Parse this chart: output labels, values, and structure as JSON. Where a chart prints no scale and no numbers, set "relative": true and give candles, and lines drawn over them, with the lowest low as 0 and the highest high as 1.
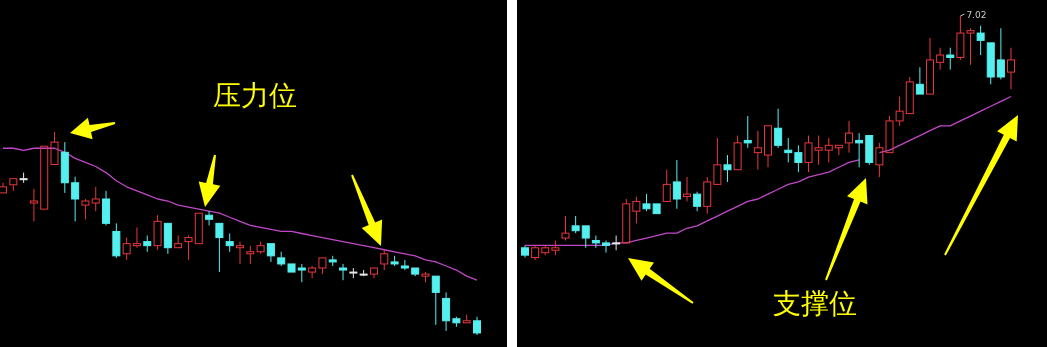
{
  "chart_data": [
    {
      "type": "candlestick",
      "relative": true,
      "categories": [
        null,
        null,
        null,
        null,
        null,
        null,
        null,
        null,
        null,
        null,
        null,
        null,
        null,
        null,
        null,
        null,
        null,
        null,
        null,
        null,
        null,
        null,
        null,
        null,
        null,
        null,
        null,
        null,
        null,
        null,
        null,
        null,
        null,
        null,
        null,
        null,
        null,
        null,
        null,
        null,
        null,
        null,
        null,
        null,
        null,
        null,
        null
      ],
      "ohlc": [
        [
          0.7,
          0.75,
          0.7,
          0.73
        ],
        [
          0.74,
          0.77,
          0.71,
          0.77
        ],
        [
          0.77,
          0.8,
          0.75,
          0.77
        ],
        [
          0.65,
          0.72,
          0.56,
          0.66
        ],
        [
          0.62,
          0.93,
          0.62,
          0.93
        ],
        [
          0.84,
          1.0,
          0.84,
          0.95
        ],
        [
          0.9,
          0.95,
          0.7,
          0.75
        ],
        [
          0.75,
          0.78,
          0.56,
          0.67
        ],
        [
          0.64,
          0.67,
          0.57,
          0.66
        ],
        [
          0.65,
          0.73,
          0.61,
          0.67
        ],
        [
          0.67,
          0.71,
          0.54,
          0.55
        ],
        [
          0.51,
          0.55,
          0.38,
          0.39
        ],
        [
          0.4,
          0.48,
          0.37,
          0.45
        ],
        [
          0.44,
          0.53,
          0.43,
          0.45
        ],
        [
          0.46,
          0.49,
          0.41,
          0.44
        ],
        [
          0.44,
          0.59,
          0.42,
          0.56
        ],
        [
          0.55,
          0.55,
          0.4,
          0.43
        ],
        [
          0.43,
          0.49,
          0.43,
          0.45
        ],
        [
          0.46,
          0.49,
          0.37,
          0.48
        ],
        [
          0.45,
          0.6,
          0.45,
          0.6
        ],
        [
          0.59,
          0.61,
          0.54,
          0.57
        ],
        [
          0.55,
          0.55,
          0.31,
          0.48
        ],
        [
          0.46,
          0.5,
          0.41,
          0.44
        ],
        [
          0.43,
          0.46,
          0.35,
          0.44
        ],
        [
          0.4,
          0.44,
          0.35,
          0.41
        ],
        [
          0.41,
          0.46,
          0.4,
          0.44
        ],
        [
          0.45,
          0.45,
          0.36,
          0.39
        ],
        [
          0.38,
          0.41,
          0.34,
          0.35
        ],
        [
          0.35,
          0.35,
          0.31,
          0.31
        ],
        [
          0.33,
          0.35,
          0.26,
          0.32
        ],
        [
          0.31,
          0.34,
          0.28,
          0.33
        ],
        [
          0.33,
          0.38,
          0.3,
          0.38
        ],
        [
          0.37,
          0.39,
          0.34,
          0.36
        ],
        [
          0.33,
          0.35,
          0.27,
          0.32
        ],
        [
          0.31,
          0.33,
          0.28,
          0.31
        ],
        [
          0.3,
          0.32,
          0.29,
          0.3
        ],
        [
          0.3,
          0.33,
          0.28,
          0.33
        ],
        [
          0.35,
          0.42,
          0.32,
          0.4
        ],
        [
          0.36,
          0.39,
          0.34,
          0.35
        ],
        [
          0.34,
          0.37,
          0.32,
          0.33
        ],
        [
          0.33,
          0.33,
          0.29,
          0.3
        ],
        [
          0.29,
          0.31,
          0.26,
          0.3
        ],
        [
          0.29,
          0.29,
          0.05,
          0.21
        ],
        [
          0.18,
          0.21,
          0.02,
          0.07
        ],
        [
          0.08,
          0.09,
          0.04,
          0.06
        ],
        [
          0.06,
          0.1,
          0.06,
          0.07
        ],
        [
          0.07,
          0.09,
          0.0,
          0.01
        ]
      ],
      "series": [
        {
          "type": "line",
          "color": "#c048c8",
          "values": [
            0.92,
            0.92,
            0.91,
            0.92,
            0.92,
            0.92,
            0.9,
            0.87,
            0.85,
            0.83,
            0.8,
            0.76,
            0.73,
            0.71,
            0.69,
            0.67,
            0.66,
            0.64,
            0.63,
            0.62,
            0.61,
            0.6,
            0.58,
            0.56,
            0.54,
            0.53,
            0.52,
            0.51,
            0.51,
            0.5,
            0.49,
            0.48,
            0.47,
            0.46,
            0.45,
            0.44,
            0.43,
            0.42,
            0.41,
            0.4,
            0.39,
            0.37,
            0.36,
            0.34,
            0.32,
            0.29,
            0.27
          ]
        }
      ],
      "annotations": [
        "压力位"
      ]
    },
    {
      "type": "candlestick",
      "relative": true,
      "categories": [
        null,
        null,
        null,
        null,
        null,
        null,
        null,
        null,
        null,
        null,
        null,
        null,
        null,
        null,
        null,
        null,
        null,
        null,
        null,
        null,
        null,
        null,
        null,
        null,
        null,
        null,
        null,
        null,
        null,
        null,
        null,
        null,
        null,
        null,
        null,
        null,
        null,
        null,
        null,
        null,
        null,
        null,
        null,
        null,
        null,
        null,
        null,
        null,
        null
      ],
      "ohlc": [
        [
          0.05,
          0.06,
          0.01,
          0.02
        ],
        [
          0.01,
          0.06,
          0.0,
          0.05
        ],
        [
          0.03,
          0.06,
          0.02,
          0.05
        ],
        [
          0.04,
          0.08,
          0.02,
          0.05
        ],
        [
          0.09,
          0.18,
          0.08,
          0.11
        ],
        [
          0.14,
          0.18,
          0.11,
          0.12
        ],
        [
          0.14,
          0.14,
          0.05,
          0.09
        ],
        [
          0.08,
          0.1,
          0.05,
          0.07
        ],
        [
          0.07,
          0.08,
          0.03,
          0.06
        ],
        [
          0.07,
          0.1,
          0.04,
          0.07
        ],
        [
          0.07,
          0.25,
          0.07,
          0.23
        ],
        [
          0.2,
          0.26,
          0.15,
          0.24
        ],
        [
          0.23,
          0.27,
          0.2,
          0.21
        ],
        [
          0.23,
          0.23,
          0.19,
          0.19
        ],
        [
          0.24,
          0.37,
          0.24,
          0.31
        ],
        [
          0.32,
          0.41,
          0.21,
          0.25
        ],
        [
          0.26,
          0.34,
          0.24,
          0.27
        ],
        [
          0.27,
          0.28,
          0.2,
          0.22
        ],
        [
          0.22,
          0.34,
          0.19,
          0.32
        ],
        [
          0.31,
          0.5,
          0.31,
          0.39
        ],
        [
          0.39,
          0.43,
          0.32,
          0.37
        ],
        [
          0.37,
          0.51,
          0.37,
          0.48
        ],
        [
          0.49,
          0.59,
          0.46,
          0.48
        ],
        [
          0.44,
          0.53,
          0.37,
          0.46
        ],
        [
          0.43,
          0.55,
          0.38,
          0.55
        ],
        [
          0.54,
          0.62,
          0.46,
          0.47
        ],
        [
          0.45,
          0.5,
          0.4,
          0.44
        ],
        [
          0.44,
          0.47,
          0.36,
          0.4
        ],
        [
          0.4,
          0.51,
          0.36,
          0.48
        ],
        [
          0.45,
          0.51,
          0.39,
          0.46
        ],
        [
          0.45,
          0.5,
          0.4,
          0.47
        ],
        [
          0.46,
          0.47,
          0.43,
          0.47
        ],
        [
          0.48,
          0.57,
          0.44,
          0.52
        ],
        [
          0.49,
          0.52,
          0.38,
          0.48
        ],
        [
          0.51,
          0.51,
          0.39,
          0.4
        ],
        [
          0.39,
          0.48,
          0.34,
          0.46
        ],
        [
          0.44,
          0.59,
          0.44,
          0.57
        ],
        [
          0.57,
          0.67,
          0.55,
          0.61
        ],
        [
          0.6,
          0.75,
          0.6,
          0.73
        ],
        [
          0.72,
          0.79,
          0.68,
          0.68
        ],
        [
          0.68,
          0.91,
          0.68,
          0.82
        ],
        [
          0.81,
          0.87,
          0.78,
          0.84
        ],
        [
          0.84,
          0.87,
          0.78,
          0.83
        ],
        [
          0.83,
          1.0,
          0.82,
          0.93
        ],
        [
          0.93,
          0.95,
          0.8,
          0.94
        ],
        [
          0.93,
          0.96,
          0.84,
          0.9
        ],
        [
          0.89,
          0.89,
          0.72,
          0.75
        ],
        [
          0.82,
          0.95,
          0.74,
          0.75
        ],
        [
          0.77,
          0.87,
          0.7,
          0.82
        ]
      ],
      "series": [
        {
          "type": "line",
          "color": "#c048c8",
          "values": [
            0.06,
            0.06,
            0.06,
            0.06,
            0.06,
            0.06,
            0.06,
            0.06,
            0.06,
            0.07,
            0.07,
            0.08,
            0.09,
            0.1,
            0.11,
            0.11,
            0.13,
            0.14,
            0.16,
            0.18,
            0.2,
            0.22,
            0.24,
            0.25,
            0.27,
            0.29,
            0.31,
            0.32,
            0.34,
            0.35,
            0.36,
            0.38,
            0.4,
            0.41,
            null,
            0.44,
            0.45,
            0.47,
            0.49,
            0.51,
            0.53,
            0.55,
            0.55,
            0.57,
            0.59,
            0.61,
            0.63,
            0.65,
            0.67
          ]
        }
      ],
      "annotations": [
        "支撑位",
        "7.02"
      ]
    }
  ]
}
